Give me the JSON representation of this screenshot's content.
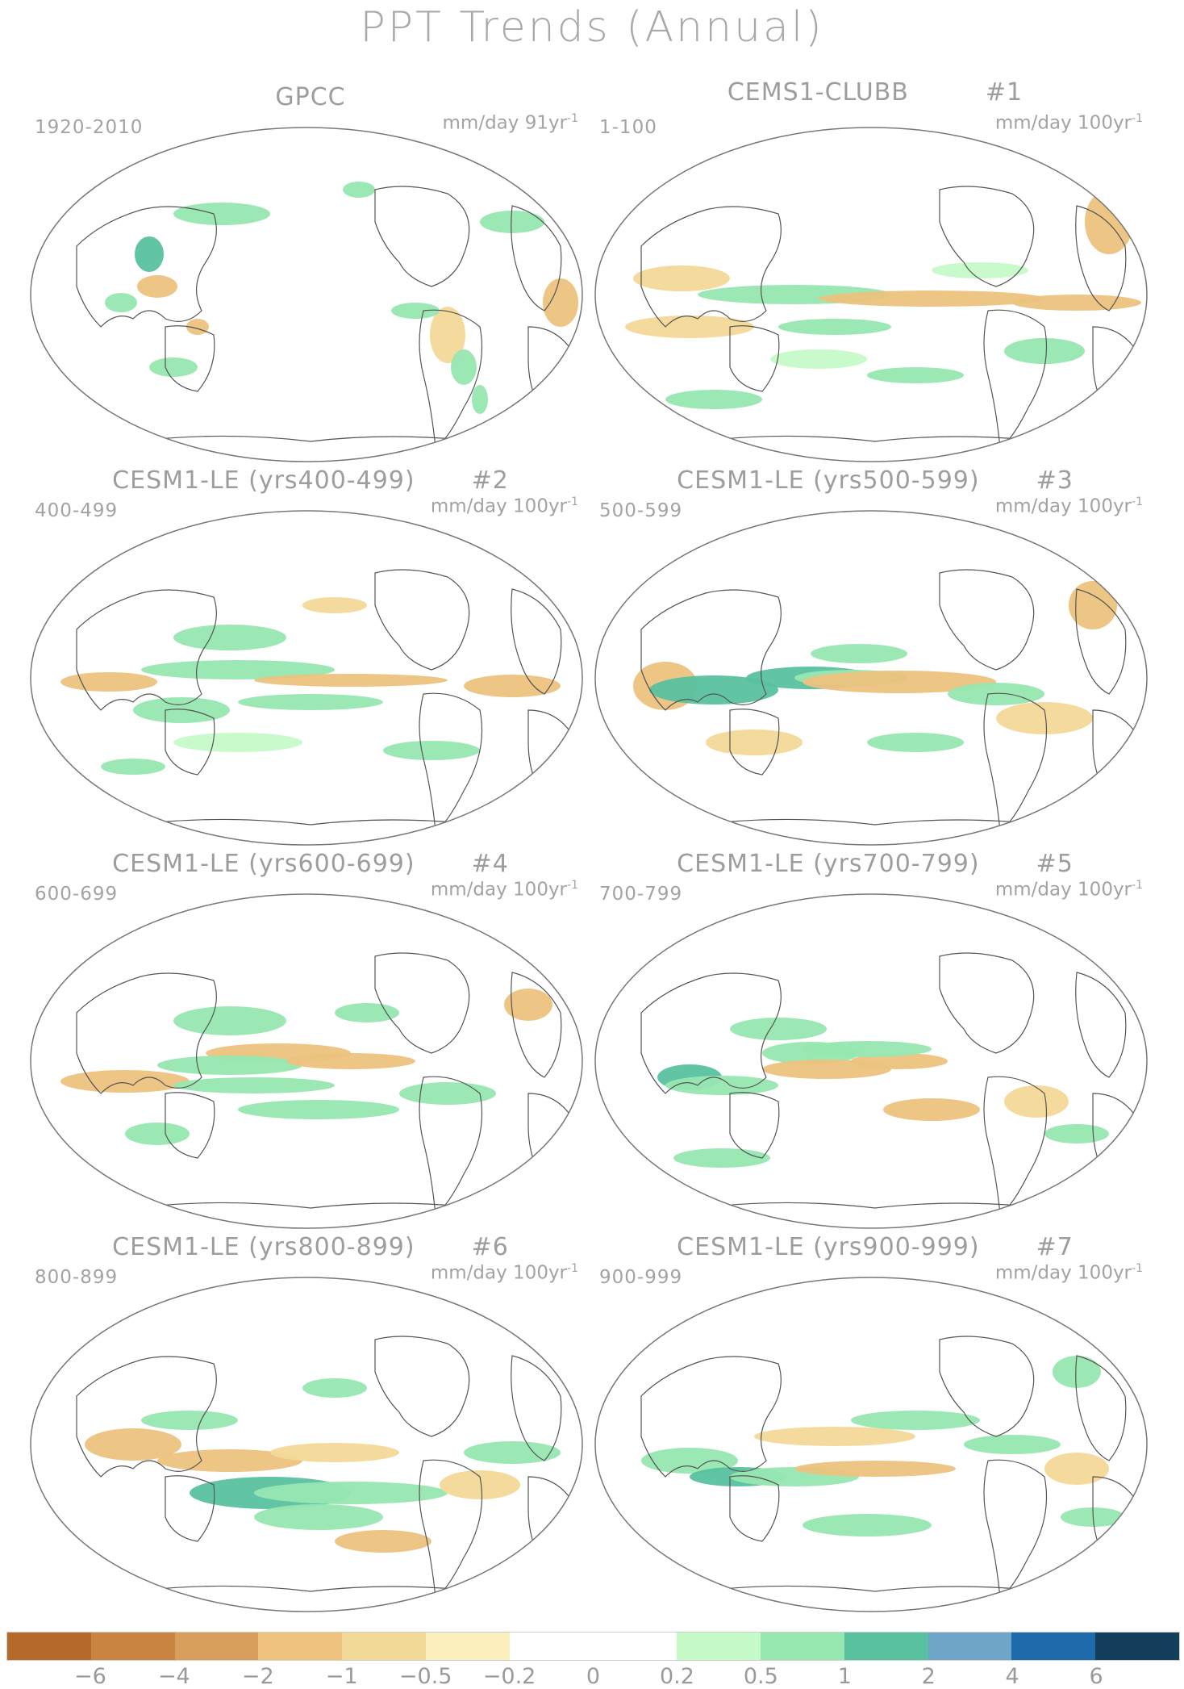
{
  "title": "PPT Trends (Annual)",
  "panels": [
    {
      "title": "GPCC",
      "num": "",
      "period": "1920-2010",
      "units": "mm/day 91yr",
      "units_exp": "-1"
    },
    {
      "title": "CEMS1-CLUBB",
      "num": "#1",
      "period": "1-100",
      "units": "mm/day 100yr",
      "units_exp": "-1"
    },
    {
      "title": "CESM1-LE (yrs400-499)",
      "num": "#2",
      "period": "400-499",
      "units": "mm/day 100yr",
      "units_exp": "-1"
    },
    {
      "title": "CESM1-LE (yrs500-599)",
      "num": "#3",
      "period": "500-599",
      "units": "mm/day 100yr",
      "units_exp": "-1"
    },
    {
      "title": "CESM1-LE (yrs600-699)",
      "num": "#4",
      "period": "600-699",
      "units": "mm/day 100yr",
      "units_exp": "-1"
    },
    {
      "title": "CESM1-LE (yrs700-799)",
      "num": "#5",
      "period": "700-799",
      "units": "mm/day 100yr",
      "units_exp": "-1"
    },
    {
      "title": "CESM1-LE (yrs800-899)",
      "num": "#6",
      "period": "800-899",
      "units": "mm/day 100yr",
      "units_exp": "-1"
    },
    {
      "title": "CESM1-LE (yrs900-999)",
      "num": "#7",
      "period": "900-999",
      "units": "mm/day 100yr",
      "units_exp": "-1"
    }
  ],
  "colorbar": {
    "colors": [
      "#b56a2c",
      "#c98441",
      "#d99e5e",
      "#ecc27e",
      "#f3d998",
      "#fbefbd",
      "#ffffff",
      "#ffffff",
      "#c6fac8",
      "#97e7b1",
      "#59c1a0",
      "#6fa5c6",
      "#1f6aaa",
      "#133f5c"
    ],
    "labels": [
      "−6",
      "−4",
      "−2",
      "−1",
      "−0.5",
      "−0.2",
      "0",
      "0.2",
      "0.5",
      "1",
      "2",
      "4",
      "6"
    ]
  }
}
